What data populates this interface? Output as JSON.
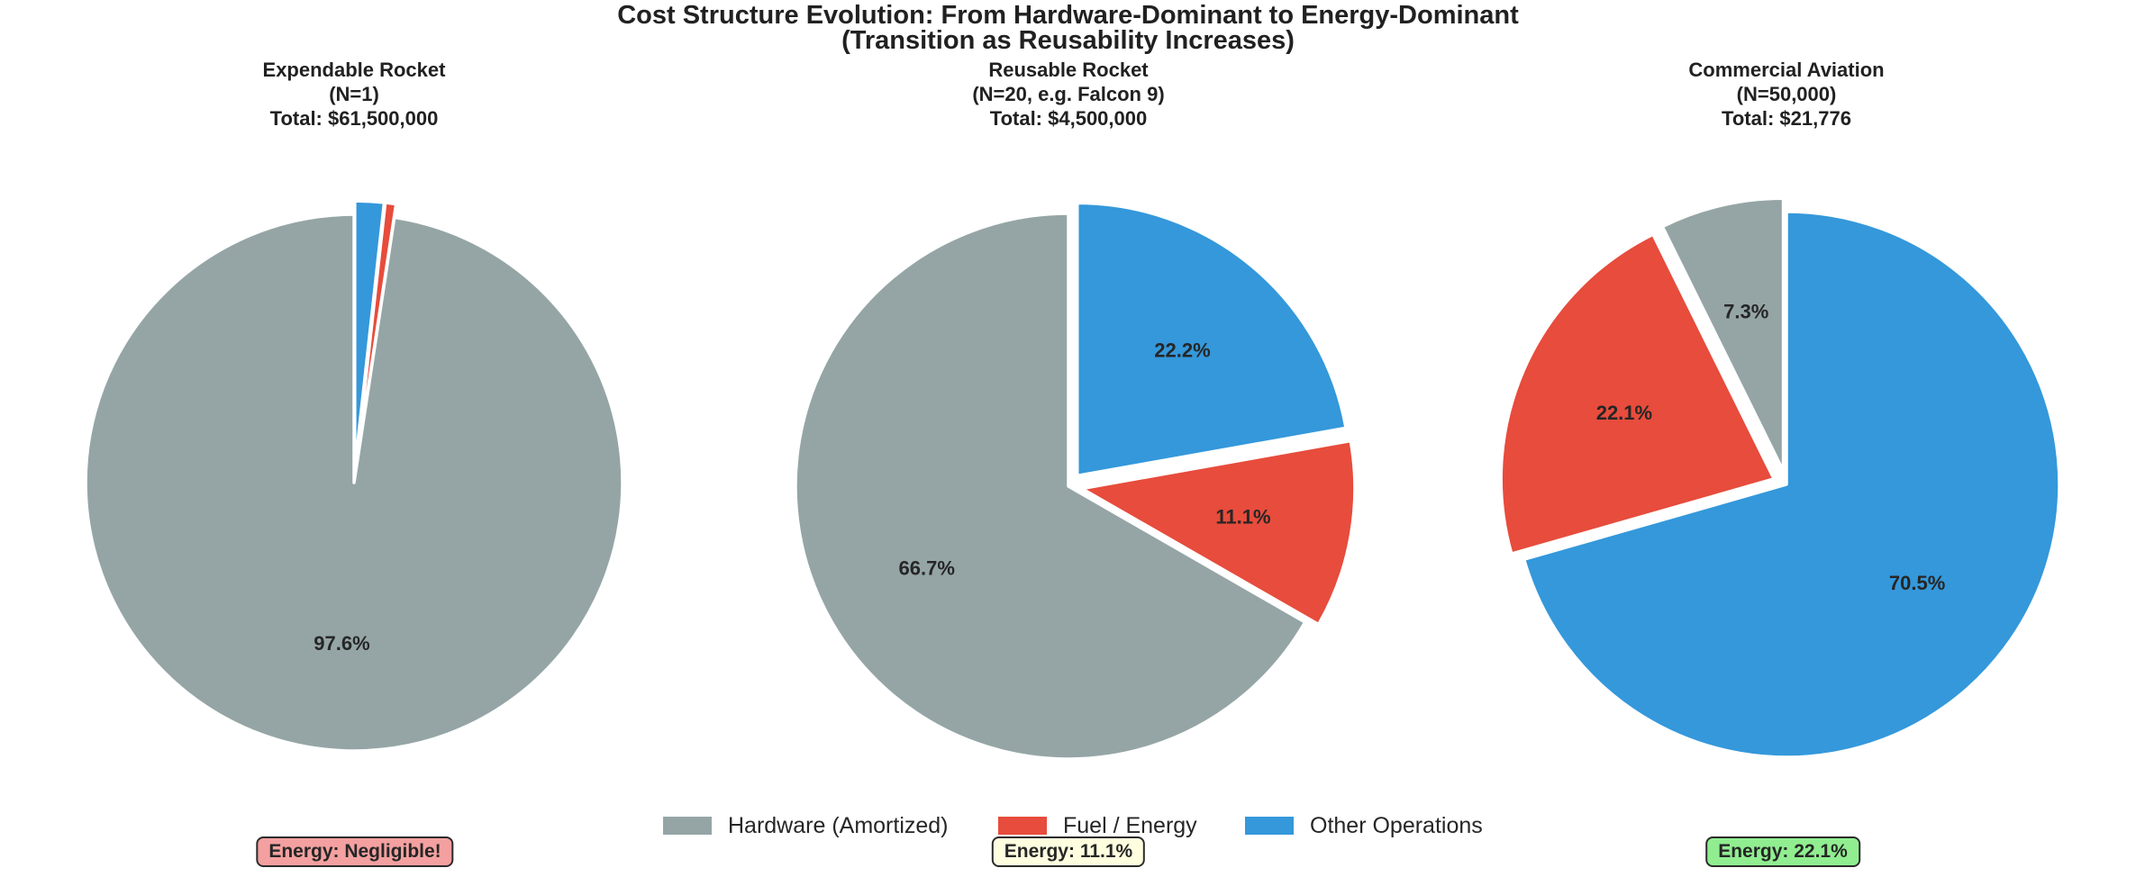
{
  "title": {
    "line1": "Cost Structure Evolution: From Hardware-Dominant to Energy-Dominant",
    "line2": "(Transition as Reusability Increases)"
  },
  "legend": {
    "items": [
      {
        "label": "Hardware (Amortized)",
        "color": "#95a5a6"
      },
      {
        "label": "Fuel / Energy",
        "color": "#e74c3c"
      },
      {
        "label": "Other Operations",
        "color": "#3498db"
      }
    ]
  },
  "chart_data": [
    {
      "type": "pie",
      "title_lines": [
        "Expendable Rocket",
        "(N=1)",
        "Total: $61,500,000"
      ],
      "categories": [
        "Hardware (Amortized)",
        "Fuel / Energy",
        "Other Operations"
      ],
      "values": [
        97.6,
        0.65,
        1.75
      ],
      "colors": [
        "#95a5a6",
        "#e74c3c",
        "#3498db"
      ],
      "pct_labels": [
        "97.6%",
        "",
        ""
      ],
      "explode": [
        0,
        0.05,
        0.05
      ],
      "start_angle": 90,
      "counterclock": true,
      "annotation": {
        "text": "Energy: Negligible!",
        "bg": "#f4a0a0"
      }
    },
    {
      "type": "pie",
      "title_lines": [
        "Reusable Rocket",
        "(N=20, e.g. Falcon 9)",
        "Total: $4,500,000"
      ],
      "categories": [
        "Hardware (Amortized)",
        "Fuel / Energy",
        "Other Operations"
      ],
      "values": [
        66.7,
        11.1,
        22.2
      ],
      "colors": [
        "#95a5a6",
        "#e74c3c",
        "#3498db"
      ],
      "pct_labels": [
        "66.7%",
        "11.1%",
        "22.2%"
      ],
      "explode": [
        0,
        0.05,
        0.05
      ],
      "start_angle": 90,
      "counterclock": true,
      "annotation": {
        "text": "Energy: 11.1%",
        "bg": "#ffffe0"
      }
    },
    {
      "type": "pie",
      "title_lines": [
        "Commercial Aviation",
        "(N=50,000)",
        "Total: $21,776"
      ],
      "categories": [
        "Hardware (Amortized)",
        "Fuel / Energy",
        "Other Operations"
      ],
      "values": [
        7.3,
        22.1,
        70.5
      ],
      "colors": [
        "#95a5a6",
        "#e74c3c",
        "#3498db"
      ],
      "pct_labels": [
        "7.3%",
        "22.1%",
        "70.5%"
      ],
      "explode": [
        0.05,
        0.05,
        0
      ],
      "start_angle": 90,
      "counterclock": true,
      "annotation": {
        "text": "Energy: 22.1%",
        "bg": "#90ee90"
      }
    }
  ]
}
